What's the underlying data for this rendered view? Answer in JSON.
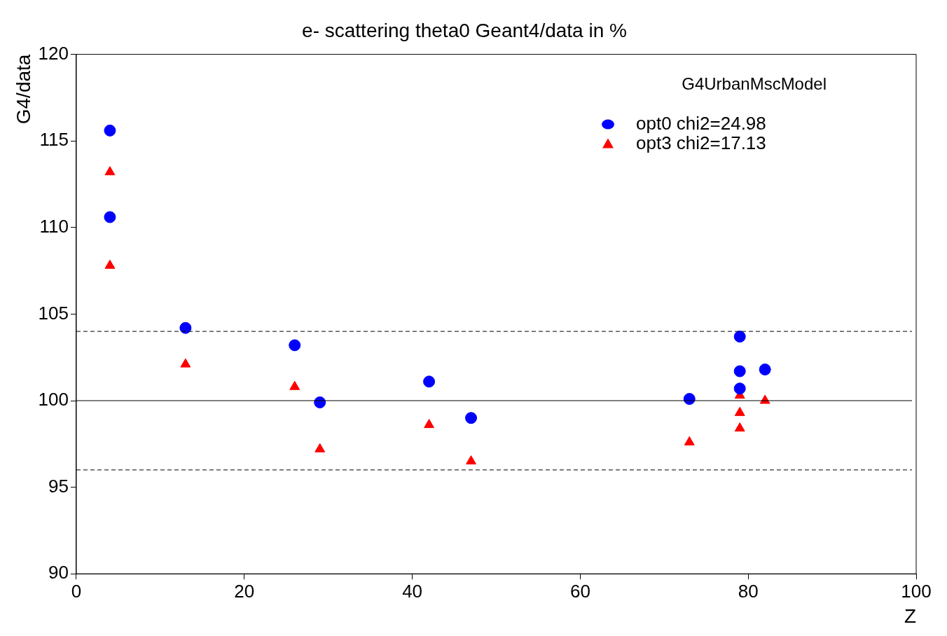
{
  "chart_data": {
    "type": "scatter",
    "title": "e- scattering theta0 Geant4/data in %",
    "xlabel": "Z",
    "ylabel": "G4/data",
    "annotations": [
      "G4UrbanMscModel"
    ],
    "xlim": [
      0,
      100
    ],
    "xticks": [
      0,
      20,
      40,
      60,
      80,
      100
    ],
    "ylim": [
      90,
      120
    ],
    "yticks": [
      90,
      95,
      100,
      105,
      110,
      115,
      120
    ],
    "grid": false,
    "legend": "top right",
    "ref_lines": [
      {
        "axis": "y",
        "value": 104,
        "line_style": "dashed",
        "color": "#000000"
      },
      {
        "axis": "y",
        "value": 100,
        "line_style": "solid",
        "color": "#000000"
      },
      {
        "axis": "y",
        "value": 96,
        "line_style": "dashed",
        "color": "#000000"
      }
    ],
    "series": [
      {
        "name": "opt0 chi2=24.98",
        "color": "#0000ff",
        "marker": "circle",
        "x": [
          4,
          4,
          13,
          26,
          29,
          42,
          47,
          73,
          79,
          79,
          79,
          82
        ],
        "values": [
          115.6,
          110.6,
          104.2,
          103.2,
          99.9,
          101.1,
          99.0,
          100.1,
          103.7,
          101.7,
          100.7,
          101.8
        ]
      },
      {
        "name": "opt3 chi2=17.13",
        "color": "#ff0000",
        "marker": "triangle",
        "x": [
          4,
          4,
          13,
          26,
          29,
          42,
          47,
          73,
          79,
          79,
          79,
          82
        ],
        "values": [
          113.2,
          107.8,
          102.1,
          100.8,
          97.2,
          98.6,
          96.5,
          97.6,
          100.3,
          99.3,
          98.4,
          100.0
        ]
      }
    ]
  }
}
